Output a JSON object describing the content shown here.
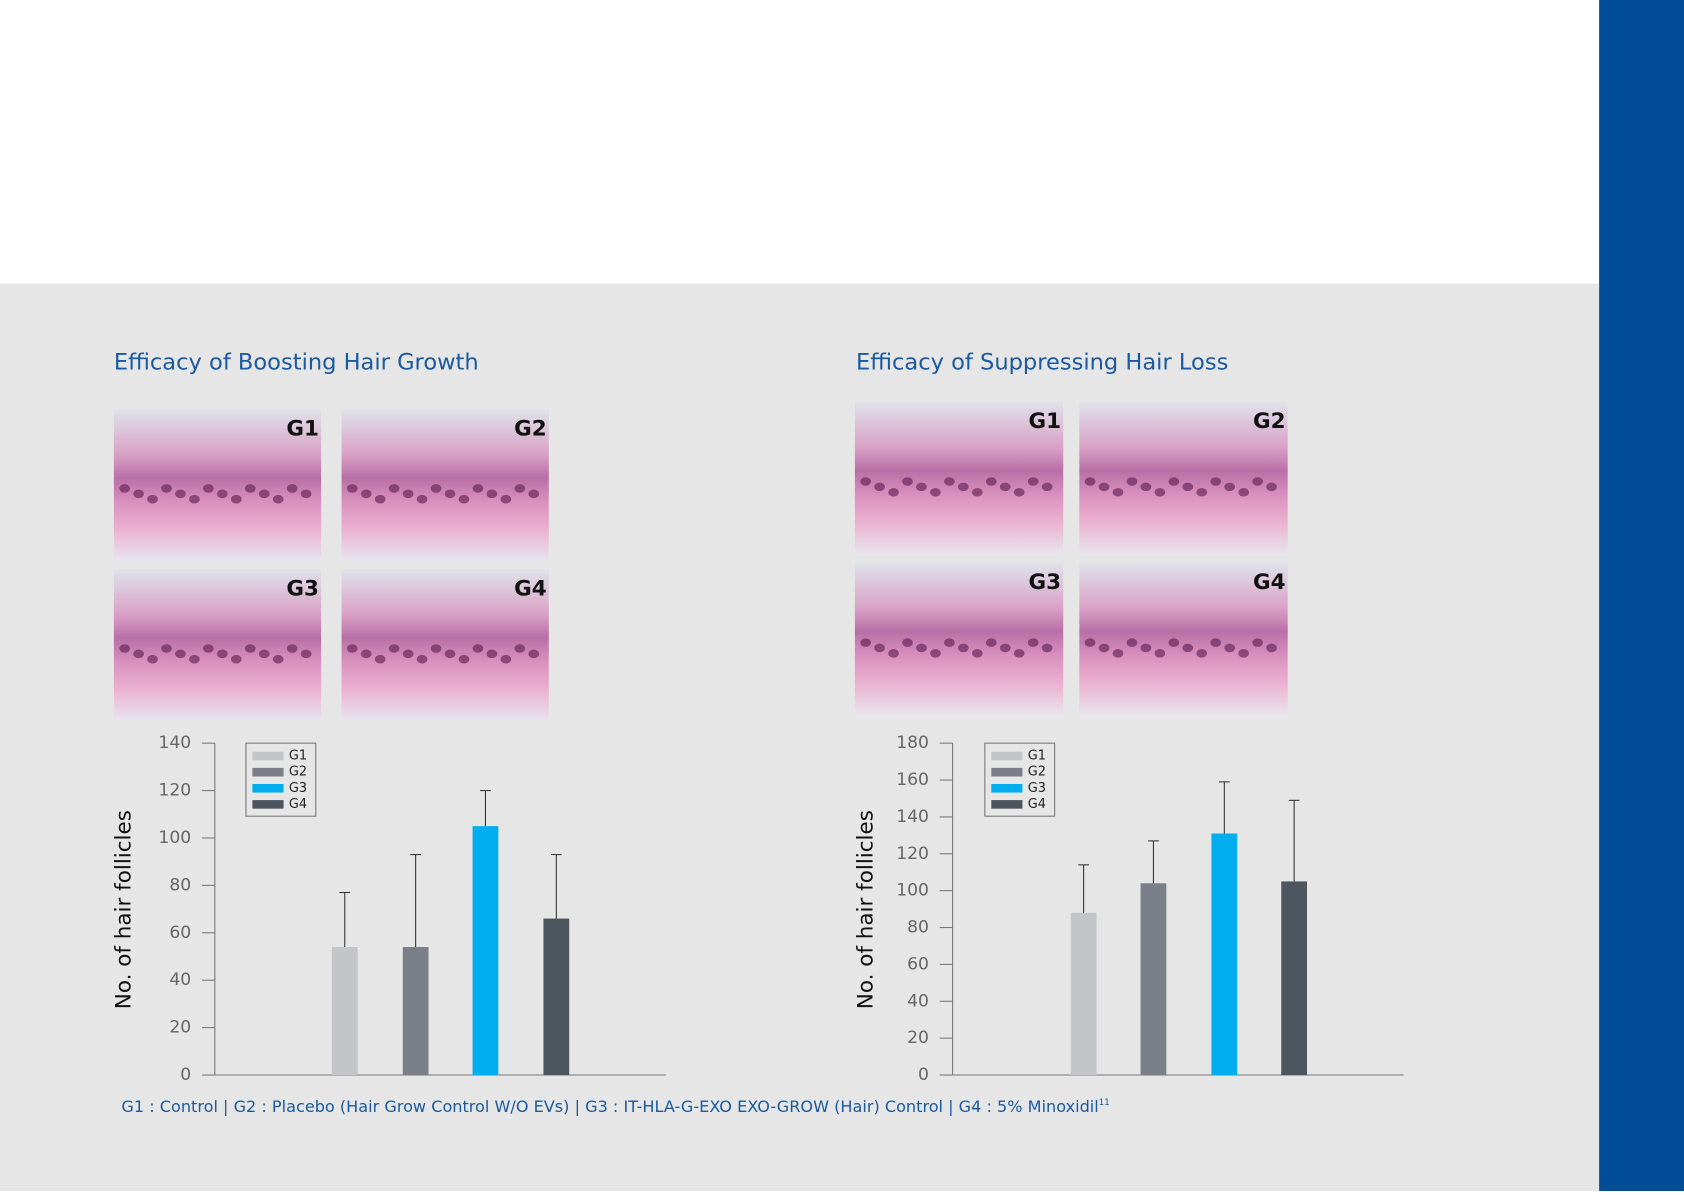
{
  "chart_data": [
    {
      "type": "bar",
      "title": "Efficacy of Boosting Hair Growth",
      "ylabel": "No. of hair follicles",
      "micrograph_labels": [
        "G1",
        "G2",
        "G3",
        "G4"
      ],
      "categories": [
        "G1",
        "G2",
        "G3",
        "G4"
      ],
      "values": [
        54,
        54,
        105,
        66
      ],
      "errors": [
        23,
        39,
        15,
        27
      ],
      "colors": [
        "#c4c5c9",
        "#7b7f87",
        "#00aeef",
        "#4d565f"
      ],
      "ylim": [
        0,
        140
      ],
      "yticks": [
        0,
        20,
        40,
        60,
        80,
        100,
        120,
        140
      ],
      "legend": "upper left"
    },
    {
      "type": "bar",
      "title": "Efficacy of Suppressing Hair Loss",
      "ylabel": "No. of hair follicles",
      "micrograph_labels": [
        "G1",
        "G2",
        "G3",
        "G4"
      ],
      "categories": [
        "G1",
        "G2",
        "G3",
        "G4"
      ],
      "values": [
        88,
        104,
        131,
        105
      ],
      "errors": [
        26,
        23,
        28,
        44
      ],
      "colors": [
        "#c4c5c9",
        "#7b7f87",
        "#00aeef",
        "#4d565f"
      ],
      "ylim": [
        0,
        180
      ],
      "yticks": [
        0,
        20,
        40,
        60,
        80,
        100,
        120,
        140,
        160,
        180
      ],
      "legend": "upper left"
    }
  ],
  "footnote": "G1 : Control | G2 : Placebo (Hair Grow Control W/O EVs) | G3 : IT-HLA-G-EXO EXO-GROW (Hair) Control | G4 : 5% Minoxidil",
  "footnote_ref": "11"
}
